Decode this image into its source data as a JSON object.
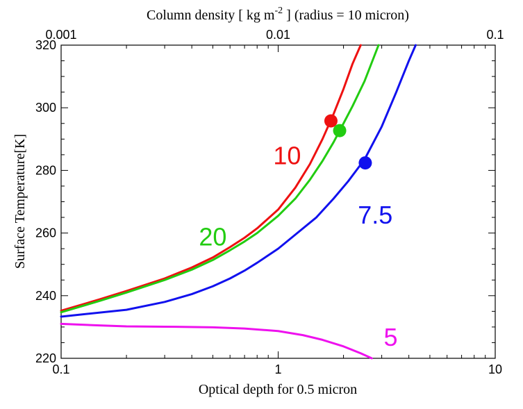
{
  "chart_data": {
    "type": "line",
    "title_top_prefix": "Column density [ kg m",
    "title_top_exp": "-2",
    "title_top_suffix": " ] (radius = 10 micron)",
    "xlabel": "Optical depth for 0.5 micron",
    "ylabel": "Surface Temperature[K]",
    "xscale": "log",
    "xlim": [
      0.1,
      10
    ],
    "ylim": [
      220,
      320
    ],
    "grid": false,
    "x_ticks": [
      {
        "value": 0.1,
        "label": "0.1"
      },
      {
        "value": 1,
        "label": "1"
      },
      {
        "value": 10,
        "label": "10"
      }
    ],
    "y_ticks": [
      {
        "value": 220,
        "label": "220"
      },
      {
        "value": 240,
        "label": "240"
      },
      {
        "value": 260,
        "label": "260"
      },
      {
        "value": 280,
        "label": "280"
      },
      {
        "value": 300,
        "label": "300"
      },
      {
        "value": 320,
        "label": "320"
      }
    ],
    "top_axis": {
      "scale": "log",
      "range": [
        0.001,
        0.1
      ],
      "ticks": [
        {
          "value": 0.001,
          "label": "0.001"
        },
        {
          "value": 0.01,
          "label": "0.01"
        },
        {
          "value": 0.1,
          "label": "0.1"
        }
      ]
    },
    "series": [
      {
        "name": "10",
        "color": "#ee1111",
        "x": [
          0.1,
          0.15,
          0.2,
          0.3,
          0.4,
          0.5,
          0.6,
          0.7,
          0.8,
          1.0,
          1.2,
          1.4,
          1.6,
          1.8,
          2.0,
          2.2,
          2.4
        ],
        "y": [
          235.2,
          238.8,
          241.5,
          245.5,
          249.0,
          252.2,
          255.5,
          258.5,
          261.5,
          267.5,
          274.5,
          282.0,
          290.0,
          298.0,
          306.0,
          314.0,
          320.0
        ],
        "label_x": 1.1,
        "label_y": 282,
        "marker": {
          "x": 1.75,
          "y": 295.8
        }
      },
      {
        "name": "20",
        "color": "#22cc11",
        "x": [
          0.1,
          0.15,
          0.2,
          0.3,
          0.4,
          0.5,
          0.6,
          0.7,
          0.8,
          1.0,
          1.2,
          1.4,
          1.6,
          1.8,
          2.0,
          2.2,
          2.5,
          2.9
        ],
        "y": [
          234.7,
          238.3,
          241.0,
          245.0,
          248.3,
          251.4,
          254.5,
          257.3,
          260.0,
          265.5,
          271.0,
          277.0,
          283.0,
          289.0,
          295.0,
          300.5,
          308.5,
          320.0
        ],
        "label_x": 0.5,
        "label_y": 256,
        "marker": {
          "x": 1.92,
          "y": 292.7
        }
      },
      {
        "name": "7.5",
        "color": "#1111ee",
        "x": [
          0.1,
          0.2,
          0.3,
          0.4,
          0.5,
          0.6,
          0.7,
          0.8,
          1.0,
          1.2,
          1.5,
          1.8,
          2.1,
          2.5,
          3.0,
          3.5,
          4.0,
          4.3
        ],
        "y": [
          233.3,
          235.5,
          238.0,
          240.5,
          243.0,
          245.5,
          248.0,
          250.5,
          255.0,
          259.5,
          265.0,
          271.0,
          276.5,
          283.5,
          294.0,
          305.0,
          315.0,
          320.0
        ],
        "label_x": 2.8,
        "label_y": 263,
        "marker": {
          "x": 2.52,
          "y": 282.4
        }
      },
      {
        "name": "5",
        "color": "#ee11ee",
        "x": [
          0.1,
          0.15,
          0.2,
          0.3,
          0.5,
          0.7,
          1.0,
          1.3,
          1.6,
          2.0,
          2.4,
          2.7
        ],
        "y": [
          231.0,
          230.5,
          230.2,
          230.1,
          229.9,
          229.5,
          228.7,
          227.4,
          225.9,
          223.8,
          221.6,
          220.0
        ],
        "label_x": 3.3,
        "label_y": 224,
        "marker": null
      }
    ]
  }
}
